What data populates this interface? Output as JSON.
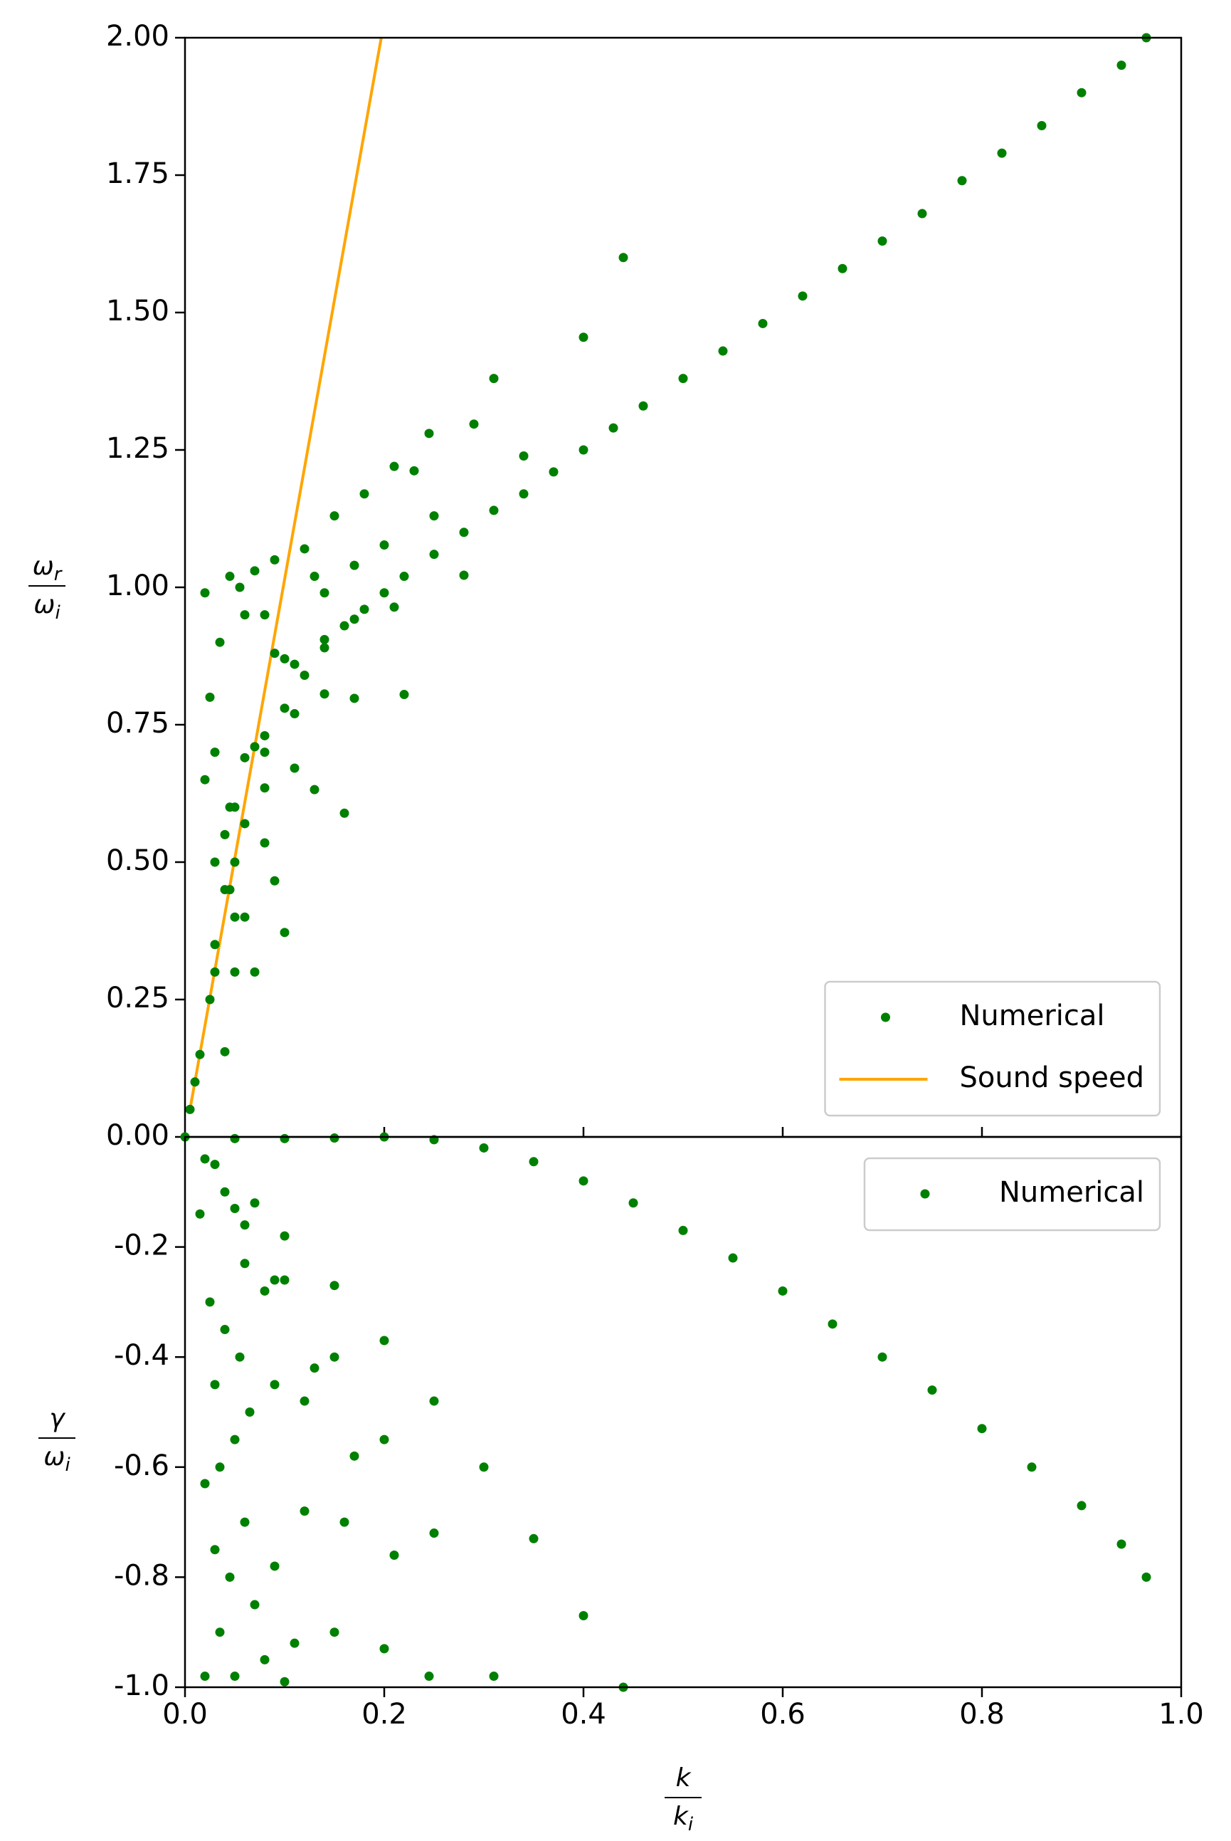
{
  "chart_data": [
    {
      "type": "scatter",
      "xlim": [
        0,
        1
      ],
      "ylim": [
        0,
        2
      ],
      "xticks": [
        0.2,
        0.4,
        0.6,
        0.8
      ],
      "show_xtick_labels": false,
      "yticks": [
        {
          "value": 0,
          "label": "0.00"
        },
        {
          "value": 0.25,
          "label": "0.25"
        },
        {
          "value": 0.5,
          "label": "0.50"
        },
        {
          "value": 0.75,
          "label": "0.75"
        },
        {
          "value": 1,
          "label": "1.00"
        },
        {
          "value": 1.25,
          "label": "1.25"
        },
        {
          "value": 1.5,
          "label": "1.50"
        },
        {
          "value": 1.75,
          "label": "1.75"
        },
        {
          "value": 2,
          "label": "2.00"
        }
      ],
      "ylabel": {
        "numerator": {
          "symbol": "ω",
          "subscript": "r"
        },
        "denominator": {
          "symbol": "ω",
          "subscript": "i"
        }
      },
      "legend": "lower right",
      "series": [
        {
          "name": "Numerical",
          "kind": "scatter",
          "color": "#008000",
          "x": [
            0.005,
            0.015,
            0.03,
            0.045,
            0.06,
            0.08,
            0.1,
            0.12,
            0.14,
            0.16,
            0.18,
            0.2,
            0.22,
            0.25,
            0.28,
            0.31,
            0.34,
            0.37,
            0.4,
            0.43,
            0.46,
            0.5,
            0.54,
            0.58,
            0.62,
            0.66,
            0.7,
            0.74,
            0.78,
            0.82,
            0.86,
            0.9,
            0.94,
            0.965,
            0.04,
            0.1,
            0.16,
            0.22,
            0.28,
            0.34,
            0.4,
            0.44,
            0.05,
            0.09,
            0.13,
            0.17,
            0.21,
            0.25,
            0.29,
            0.31,
            0.05,
            0.08,
            0.11,
            0.14,
            0.17,
            0.2,
            0.23,
            0.245,
            0.05,
            0.08,
            0.11,
            0.14,
            0.17,
            0.21,
            0.05,
            0.08,
            0.11,
            0.14,
            0.18,
            0.04,
            0.07,
            0.1,
            0.13,
            0.15,
            0.03,
            0.06,
            0.09,
            0.12,
            0.02,
            0.01,
            0.02,
            0.025,
            0.03,
            0.035,
            0.045,
            0.055,
            0.06,
            0.07,
            0.03,
            0.04,
            0.025,
            0.06,
            0.08,
            0.09,
            0.07,
            0.045
          ],
          "y": [
            0.05,
            0.15,
            0.3,
            0.45,
            0.57,
            0.7,
            0.78,
            0.84,
            0.89,
            0.93,
            0.96,
            0.99,
            1.02,
            1.06,
            1.1,
            1.14,
            1.17,
            1.21,
            1.25,
            1.29,
            1.33,
            1.38,
            1.43,
            1.48,
            1.53,
            1.58,
            1.63,
            1.68,
            1.74,
            1.79,
            1.84,
            1.9,
            1.95,
            2.0,
            0.155,
            0.372,
            0.589,
            0.805,
            1.022,
            1.239,
            1.455,
            1.6,
            0.3,
            0.466,
            0.632,
            0.798,
            0.964,
            1.13,
            1.297,
            1.38,
            0.4,
            0.535,
            0.671,
            0.806,
            0.942,
            1.077,
            1.212,
            1.28,
            0.5,
            0.635,
            0.77,
            0.905,
            1.04,
            1.22,
            0.6,
            0.73,
            0.86,
            0.99,
            1.17,
            0.55,
            0.71,
            0.87,
            1.02,
            1.13,
            0.5,
            0.69,
            0.88,
            1.07,
            0.99,
            0.1,
            0.65,
            0.8,
            0.35,
            0.9,
            1.02,
            1.0,
            0.95,
            1.03,
            0.7,
            0.45,
            0.25,
            0.4,
            0.95,
            1.05,
            0.3,
            0.6
          ]
        },
        {
          "name": "Sound speed",
          "kind": "line",
          "color": "#ffa500",
          "x": [
            0.005,
            0.197
          ],
          "y": [
            0.05,
            2.0
          ]
        }
      ]
    },
    {
      "type": "scatter",
      "xlim": [
        0,
        1
      ],
      "ylim": [
        -1,
        0
      ],
      "xticks": [
        {
          "value": 0,
          "label": "0.0"
        },
        {
          "value": 0.2,
          "label": "0.2"
        },
        {
          "value": 0.4,
          "label": "0.4"
        },
        {
          "value": 0.6,
          "label": "0.6"
        },
        {
          "value": 0.8,
          "label": "0.8"
        },
        {
          "value": 1,
          "label": "1.0"
        }
      ],
      "show_xtick_labels": true,
      "yticks": [
        {
          "value": -1,
          "label": "-1.0"
        },
        {
          "value": -0.8,
          "label": "-0.8"
        },
        {
          "value": -0.6,
          "label": "-0.6"
        },
        {
          "value": -0.4,
          "label": "-0.4"
        },
        {
          "value": -0.2,
          "label": "-0.2"
        }
      ],
      "ylabel": {
        "numerator": {
          "symbol": "γ"
        },
        "denominator": {
          "symbol": "ω",
          "subscript": "i"
        }
      },
      "xlabel": {
        "numerator": {
          "symbol": "k"
        },
        "denominator": {
          "symbol": "k",
          "subscript": "i"
        }
      },
      "legend": "upper right",
      "series": [
        {
          "name": "Numerical",
          "kind": "scatter",
          "color": "#008000",
          "x": [
            0.0,
            0.05,
            0.1,
            0.15,
            0.2,
            0.25,
            0.3,
            0.35,
            0.4,
            0.45,
            0.5,
            0.55,
            0.6,
            0.65,
            0.7,
            0.75,
            0.8,
            0.85,
            0.9,
            0.94,
            0.965,
            0.07,
            0.1,
            0.15,
            0.2,
            0.25,
            0.3,
            0.35,
            0.4,
            0.44,
            0.06,
            0.1,
            0.15,
            0.2,
            0.25,
            0.31,
            0.05,
            0.09,
            0.13,
            0.17,
            0.21,
            0.245,
            0.04,
            0.08,
            0.12,
            0.16,
            0.2,
            0.03,
            0.06,
            0.09,
            0.12,
            0.15,
            0.02,
            0.015,
            0.025,
            0.03,
            0.035,
            0.03,
            0.035,
            0.05,
            0.04,
            0.05,
            0.06,
            0.07,
            0.08,
            0.1,
            0.02,
            0.045,
            0.065,
            0.055,
            0.02,
            0.09,
            0.11
          ],
          "y": [
            0,
            -0.003,
            -0.003,
            -0.002,
            0,
            -0.005,
            -0.02,
            -0.045,
            -0.08,
            -0.12,
            -0.17,
            -0.22,
            -0.28,
            -0.34,
            -0.4,
            -0.46,
            -0.53,
            -0.6,
            -0.67,
            -0.74,
            -0.8,
            -0.12,
            -0.18,
            -0.27,
            -0.37,
            -0.48,
            -0.6,
            -0.73,
            -0.87,
            -1.0,
            -0.16,
            -0.26,
            -0.4,
            -0.55,
            -0.72,
            -0.98,
            -0.13,
            -0.26,
            -0.42,
            -0.58,
            -0.76,
            -0.98,
            -0.1,
            -0.28,
            -0.48,
            -0.7,
            -0.93,
            -0.05,
            -0.23,
            -0.45,
            -0.68,
            -0.9,
            -0.04,
            -0.14,
            -0.3,
            -0.45,
            -0.6,
            -0.75,
            -0.9,
            -0.98,
            -0.35,
            -0.55,
            -0.7,
            -0.85,
            -0.95,
            -0.99,
            -0.63,
            -0.8,
            -0.5,
            -0.4,
            -0.98,
            -0.78,
            -0.92
          ]
        }
      ]
    }
  ]
}
